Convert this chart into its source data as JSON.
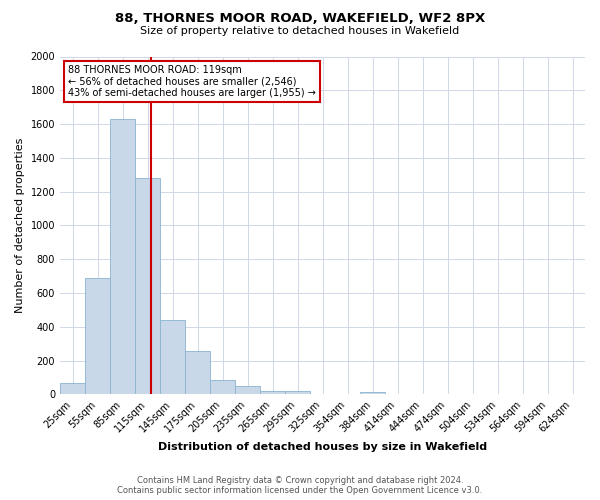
{
  "title": "88, THORNES MOOR ROAD, WAKEFIELD, WF2 8PX",
  "subtitle": "Size of property relative to detached houses in Wakefield",
  "xlabel": "Distribution of detached houses by size in Wakefield",
  "ylabel": "Number of detached properties",
  "bar_color": "#c8d8e8",
  "bar_edge_color": "#89b4d0",
  "bin_labels": [
    "25sqm",
    "55sqm",
    "85sqm",
    "115sqm",
    "145sqm",
    "175sqm",
    "205sqm",
    "235sqm",
    "265sqm",
    "295sqm",
    "325sqm",
    "354sqm",
    "384sqm",
    "414sqm",
    "444sqm",
    "474sqm",
    "504sqm",
    "534sqm",
    "564sqm",
    "594sqm",
    "624sqm"
  ],
  "bar_heights": [
    65,
    690,
    1630,
    1280,
    440,
    255,
    85,
    50,
    20,
    20,
    0,
    0,
    15,
    0,
    0,
    0,
    0,
    0,
    0,
    0,
    0
  ],
  "ylim": [
    0,
    2000
  ],
  "yticks": [
    0,
    200,
    400,
    600,
    800,
    1000,
    1200,
    1400,
    1600,
    1800,
    2000
  ],
  "n_bins": 21,
  "property_line_index": 3.633,
  "annotation_line1": "88 THORNES MOOR ROAD: 119sqm",
  "annotation_line2": "← 56% of detached houses are smaller (2,546)",
  "annotation_line3": "43% of semi-detached houses are larger (1,955) →",
  "footer_line1": "Contains HM Land Registry data © Crown copyright and database right 2024.",
  "footer_line2": "Contains public sector information licensed under the Open Government Licence v3.0.",
  "grid_color": "#d0d8e8",
  "annotation_box_color": "#ffffff",
  "annotation_box_edge": "#cc0000",
  "vline_color": "#cc0000",
  "background_color": "#ffffff",
  "title_fontsize": 9.5,
  "subtitle_fontsize": 8,
  "ylabel_fontsize": 8,
  "xlabel_fontsize": 8,
  "tick_fontsize": 7,
  "footer_fontsize": 6,
  "annot_fontsize": 7
}
